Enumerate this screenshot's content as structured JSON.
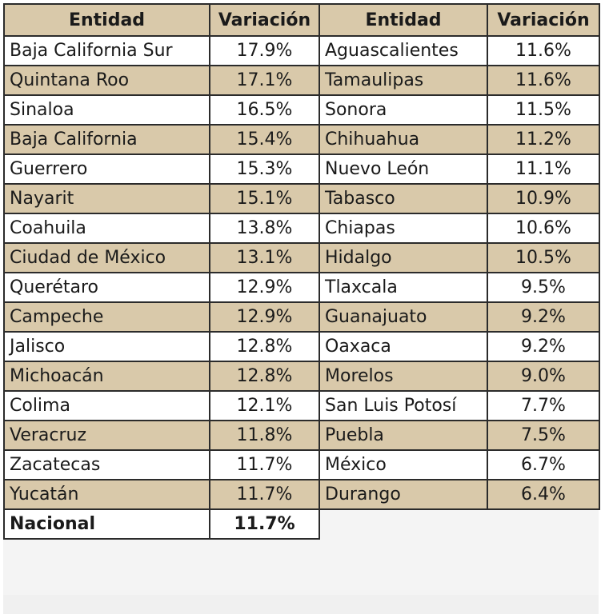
{
  "left_table": {
    "header": {
      "entity": "Entidad",
      "variation": "Variación"
    },
    "rows": [
      {
        "entity": "Baja California Sur",
        "variation": "17.9%"
      },
      {
        "entity": "Quintana Roo",
        "variation": "17.1%"
      },
      {
        "entity": "Sinaloa",
        "variation": "16.5%"
      },
      {
        "entity": "Baja California",
        "variation": "15.4%"
      },
      {
        "entity": "Guerrero",
        "variation": "15.3%"
      },
      {
        "entity": "Nayarit",
        "variation": "15.1%"
      },
      {
        "entity": "Coahuila",
        "variation": "13.8%"
      },
      {
        "entity": "Ciudad de México",
        "variation": "13.1%"
      },
      {
        "entity": "Querétaro",
        "variation": "12.9%"
      },
      {
        "entity": "Campeche",
        "variation": "12.9%"
      },
      {
        "entity": "Jalisco",
        "variation": "12.8%"
      },
      {
        "entity": "Michoacán",
        "variation": "12.8%"
      },
      {
        "entity": "Colima",
        "variation": "12.1%"
      },
      {
        "entity": "Veracruz",
        "variation": "11.8%"
      },
      {
        "entity": "Zacatecas",
        "variation": "11.7%"
      },
      {
        "entity": "Yucatán",
        "variation": "11.7%"
      }
    ],
    "total": {
      "entity": "Nacional",
      "variation": "11.7%"
    }
  },
  "right_table": {
    "header": {
      "entity": "Entidad",
      "variation": "Variación"
    },
    "rows": [
      {
        "entity": "Aguascalientes",
        "variation": "11.6%"
      },
      {
        "entity": "Tamaulipas",
        "variation": "11.6%"
      },
      {
        "entity": "Sonora",
        "variation": "11.5%"
      },
      {
        "entity": "Chihuahua",
        "variation": "11.2%"
      },
      {
        "entity": "Nuevo León",
        "variation": "11.1%"
      },
      {
        "entity": "Tabasco",
        "variation": "10.9%"
      },
      {
        "entity": "Chiapas",
        "variation": "10.6%"
      },
      {
        "entity": "Hidalgo",
        "variation": "10.5%"
      },
      {
        "entity": "Tlaxcala",
        "variation": "9.5%"
      },
      {
        "entity": "Guanajuato",
        "variation": "9.2%"
      },
      {
        "entity": "Oaxaca",
        "variation": "9.2%"
      },
      {
        "entity": "Morelos",
        "variation": "9.0%"
      },
      {
        "entity": "San Luis Potosí",
        "variation": "7.7%"
      },
      {
        "entity": "Puebla",
        "variation": "7.5%"
      },
      {
        "entity": "México",
        "variation": "6.7%"
      },
      {
        "entity": "Durango",
        "variation": "6.4%"
      }
    ]
  },
  "colors": {
    "band": "#d9c9aa",
    "border": "#2b2b2b",
    "text": "#1a1a1a"
  }
}
